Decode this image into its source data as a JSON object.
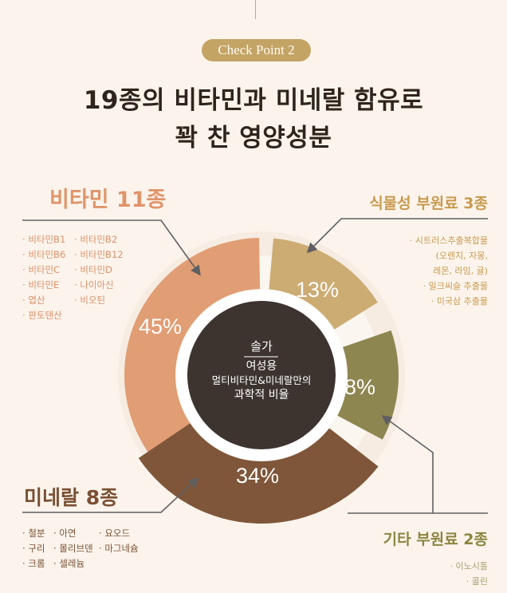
{
  "header": {
    "badge": "Check Point 2",
    "title_line1": "19종의 비타민과 미네랄 함유로",
    "title_line2": "꽉 찬 영양성분"
  },
  "center": {
    "brand": "솔가",
    "line1": "여성용",
    "line2": "멀티비타민&미네랄만의",
    "line3": "과학적 비율"
  },
  "categories": {
    "vitamin": {
      "title": "비타민 11종",
      "color": "#e09c72",
      "items_col1": [
        "비타민B1",
        "비타민B6",
        "비타민C",
        "비타민E",
        "엽산",
        "판토텐산"
      ],
      "items_col2": [
        "비타민B2",
        "비타민B12",
        "비타민D",
        "나이아신",
        "비오틴"
      ]
    },
    "plant": {
      "title": "식물성 부원료 3종",
      "color": "#c9a05c",
      "items": [
        "· 시트러스추출복합물",
        "(오렌지, 자몽,",
        "레몬, 라임, 귤)",
        "· 밀크씨슬 추출물",
        "· 미국삼 추출물"
      ]
    },
    "mineral": {
      "title": "미네랄 8종",
      "color": "#7a5034",
      "items_col1": [
        "철분",
        "구리",
        "크롬"
      ],
      "items_col2": [
        "아연",
        "몰리브덴",
        "셀레늄"
      ],
      "items_col3": [
        "요오드",
        "마그네슘"
      ]
    },
    "other": {
      "title": "기타 부원료 2종",
      "color": "#8c8540",
      "items": [
        "· 이노시톨",
        "· 콜린"
      ]
    }
  },
  "chart_data": {
    "type": "pie",
    "title": "솔가 여성용 멀티비타민&미네랄만의 과학적 비율",
    "categories": [
      "비타민 11종",
      "식물성 부원료 3종",
      "기타 부원료 2종",
      "미네랄 8종"
    ],
    "values": [
      45,
      13,
      8,
      34
    ],
    "labels": [
      "45%",
      "13%",
      "8%",
      "34%"
    ],
    "colors": [
      "#e19d74",
      "#cdac74",
      "#8e8650",
      "#7f5639"
    ],
    "center": [
      328,
      470
    ],
    "inner_radius": 108,
    "outer_radii": [
      172,
      172,
      172,
      186
    ],
    "angles_deg": [
      [
        198,
        359
      ],
      [
        5,
        58
      ],
      [
        71,
        118
      ],
      [
        128,
        236
      ]
    ],
    "donut": true
  }
}
